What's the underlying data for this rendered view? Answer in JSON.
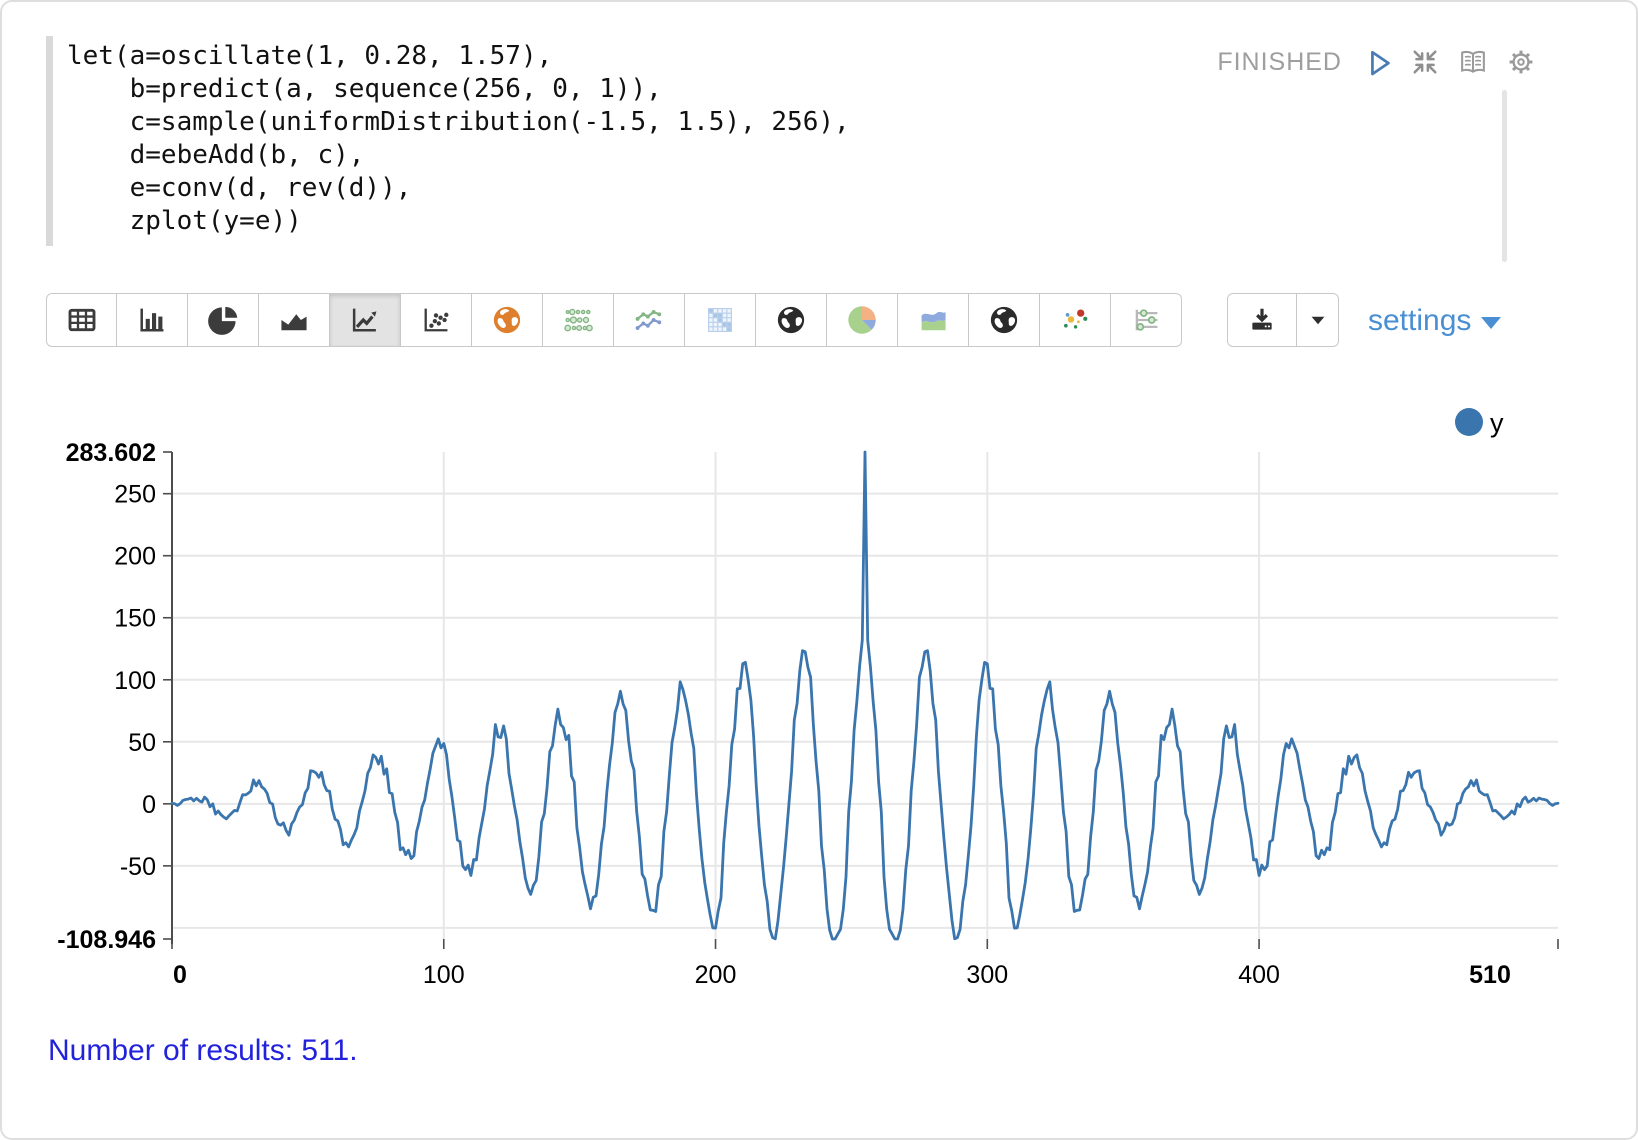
{
  "editor": {
    "code": "let(a=oscillate(1, 0.28, 1.57),\n    b=predict(a, sequence(256, 0, 1)),\n    c=sample(uniformDistribution(-1.5, 1.5), 256),\n    d=ebeAdd(b, c),\n    e=conv(d, rev(d)),\n    zplot(y=e))"
  },
  "paragraph": {
    "status": "FINISHED",
    "control_icons": [
      "run",
      "compress",
      "open-book",
      "gear"
    ]
  },
  "toolbar": {
    "buttons": [
      {
        "icon": "table"
      },
      {
        "icon": "bar-chart"
      },
      {
        "icon": "pie-chart"
      },
      {
        "icon": "area-chart"
      },
      {
        "icon": "line-chart",
        "selected": true
      },
      {
        "icon": "scatter-plot"
      },
      {
        "icon": "globe-orange"
      },
      {
        "icon": "bubble-grid"
      },
      {
        "icon": "multi-line"
      },
      {
        "icon": "heatmap"
      },
      {
        "icon": "globe-dark"
      },
      {
        "icon": "pie-colored"
      },
      {
        "icon": "stacked-area"
      },
      {
        "icon": "globe-dark"
      },
      {
        "icon": "scatter-colored"
      },
      {
        "icon": "parallel-sliders"
      }
    ],
    "download_icons": [
      "download",
      "caret-down"
    ],
    "settings_label": "settings"
  },
  "chart_data": {
    "type": "line",
    "title": "",
    "xlabel": "",
    "ylabel": "",
    "xlim": [
      0,
      510
    ],
    "ylim": [
      -108.946,
      283.602
    ],
    "x_ticks": [
      0,
      100,
      200,
      300,
      400,
      510
    ],
    "y_ticks": [
      283.602,
      250,
      200,
      150,
      100,
      50,
      0,
      -50,
      -108.946
    ],
    "x_gridlines": [
      100,
      200,
      300,
      400
    ],
    "y_gridlines": [
      250,
      200,
      150,
      100,
      50,
      0,
      -50,
      -100
    ],
    "grid": true,
    "legend_position": "top-right",
    "legend": [
      {
        "name": "y",
        "color": "#3a75ae"
      }
    ],
    "series": [
      {
        "name": "y",
        "generator": {
          "kind": "symmetric-autocorrelation",
          "n_points": 511,
          "center_index": 255,
          "base_formula": "0.5*(256-|k-255|)*cos(0.28*(k-255)) + noise",
          "omega": 0.28,
          "noise_scale": 0.8,
          "seed": 987654321,
          "peak_value": 283.602,
          "min_value": -108.946
        }
      }
    ]
  },
  "footer": {
    "text": "Number of results: 511."
  }
}
